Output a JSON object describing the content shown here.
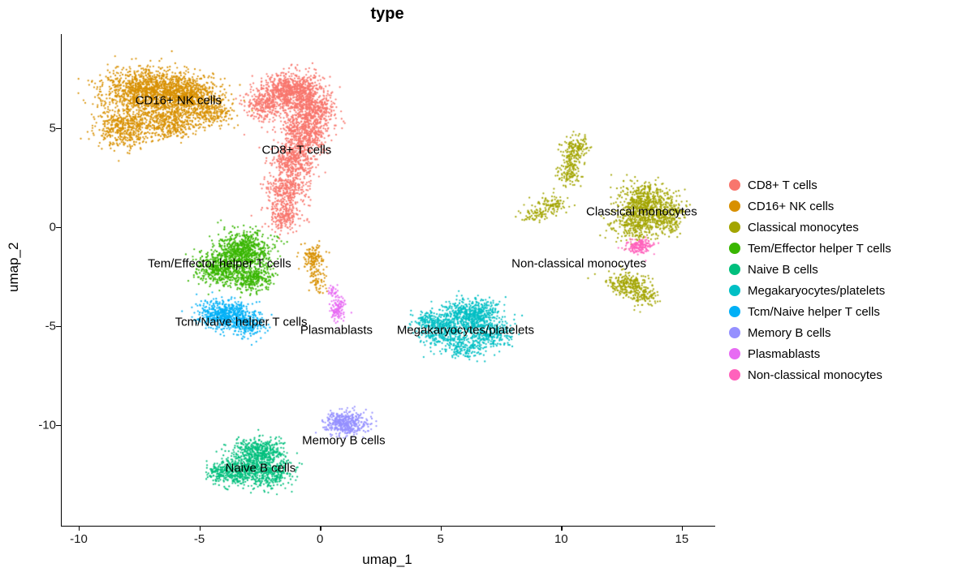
{
  "title": "type",
  "axes": {
    "x": {
      "label": "umap_1",
      "ticks": [
        -10,
        -5,
        0,
        5,
        10,
        15
      ]
    },
    "y": {
      "label": "umap_2",
      "ticks": [
        -10,
        -5,
        0,
        5
      ]
    }
  },
  "chart_data": {
    "type": "scatter",
    "title": "type",
    "xlabel": "umap_1",
    "ylabel": "umap_2",
    "xlim": [
      -10.74,
      16.35
    ],
    "ylim": [
      -15.1,
      9.75
    ],
    "x_ticks": [
      -10,
      -5,
      0,
      5,
      10,
      15
    ],
    "y_ticks": [
      -10,
      -5,
      0,
      5
    ],
    "grid": false,
    "legend_position": "right",
    "point_radius": 1.1,
    "series": [
      {
        "name": "CD8+ T cells",
        "color": "#F8766D",
        "label_pos": [
          -1.0,
          3.9
        ],
        "blobs": [
          [
            -1.2,
            6.9,
            0.6,
            0.45,
            800
          ],
          [
            -0.4,
            5.9,
            0.5,
            0.5,
            500
          ],
          [
            -2.4,
            6.2,
            0.4,
            0.4,
            250
          ],
          [
            -0.7,
            4.6,
            0.5,
            0.5,
            450
          ],
          [
            -1.1,
            3.3,
            0.45,
            0.5,
            400
          ],
          [
            -1.4,
            1.9,
            0.4,
            0.45,
            300
          ],
          [
            -1.5,
            0.6,
            0.35,
            0.4,
            220
          ]
        ]
      },
      {
        "name": "CD16+ NK cells",
        "color": "#D89000",
        "label_pos": [
          -5.9,
          6.4
        ],
        "blobs": [
          [
            -7.3,
            6.9,
            0.85,
            0.55,
            1100
          ],
          [
            -5.6,
            6.7,
            0.7,
            0.5,
            700
          ],
          [
            -8.2,
            5.0,
            0.55,
            0.5,
            450
          ],
          [
            -6.4,
            5.3,
            0.65,
            0.45,
            450
          ],
          [
            -4.6,
            5.9,
            0.5,
            0.45,
            300
          ],
          [
            -0.3,
            -1.6,
            0.22,
            0.35,
            140
          ],
          [
            -0.1,
            -2.8,
            0.18,
            0.3,
            60
          ]
        ]
      },
      {
        "name": "Classical monocytes",
        "color": "#A3A500",
        "label_pos": [
          13.3,
          0.75
        ],
        "blobs": [
          [
            13.5,
            1.2,
            0.6,
            0.5,
            600
          ],
          [
            13.0,
            0.1,
            0.5,
            0.4,
            280
          ],
          [
            14.3,
            0.4,
            0.4,
            0.4,
            220
          ],
          [
            10.6,
            4.0,
            0.3,
            0.3,
            130
          ],
          [
            10.4,
            3.4,
            0.15,
            0.3,
            60
          ],
          [
            10.3,
            2.7,
            0.25,
            0.3,
            100
          ],
          [
            9.6,
            1.1,
            0.35,
            0.25,
            100
          ],
          [
            8.9,
            0.6,
            0.3,
            0.2,
            60
          ],
          [
            12.7,
            -2.9,
            0.45,
            0.3,
            250
          ],
          [
            13.4,
            -3.5,
            0.3,
            0.25,
            110
          ]
        ]
      },
      {
        "name": "Tem/Effector helper T cells",
        "color": "#39B600",
        "label_pos": [
          -4.2,
          -1.85
        ],
        "blobs": [
          [
            -3.2,
            -1.2,
            0.55,
            0.45,
            700
          ],
          [
            -4.2,
            -2.1,
            0.45,
            0.4,
            450
          ],
          [
            -2.9,
            -2.5,
            0.45,
            0.35,
            350
          ]
        ]
      },
      {
        "name": "Naive B cells",
        "color": "#00BF7D",
        "label_pos": [
          -2.5,
          -12.2
        ],
        "blobs": [
          [
            -2.5,
            -11.4,
            0.5,
            0.35,
            450
          ],
          [
            -3.2,
            -12.3,
            0.5,
            0.4,
            450
          ],
          [
            -2.0,
            -12.5,
            0.4,
            0.35,
            250
          ],
          [
            -4.2,
            -12.4,
            0.3,
            0.3,
            130
          ]
        ]
      },
      {
        "name": "Megakaryocytes/platelets",
        "color": "#00BFC4",
        "label_pos": [
          6.0,
          -5.2
        ],
        "blobs": [
          [
            6.3,
            -4.4,
            0.6,
            0.4,
            550
          ],
          [
            5.2,
            -5.2,
            0.5,
            0.4,
            400
          ],
          [
            7.0,
            -5.4,
            0.45,
            0.35,
            300
          ],
          [
            4.4,
            -4.7,
            0.3,
            0.25,
            110
          ],
          [
            6.0,
            -6.2,
            0.4,
            0.25,
            140
          ]
        ]
      },
      {
        "name": "Tcm/Naive helper T cells",
        "color": "#00B0F6",
        "label_pos": [
          -3.3,
          -4.8
        ],
        "blobs": [
          [
            -4.0,
            -4.4,
            0.5,
            0.35,
            550
          ],
          [
            -3.0,
            -4.9,
            0.35,
            0.3,
            220
          ]
        ]
      },
      {
        "name": "Memory B cells",
        "color": "#9590FF",
        "label_pos": [
          0.95,
          -10.8
        ],
        "blobs": [
          [
            1.0,
            -9.9,
            0.45,
            0.3,
            420
          ]
        ]
      },
      {
        "name": "Plasmablasts",
        "color": "#E76BF3",
        "label_pos": [
          0.65,
          -5.2
        ],
        "blobs": [
          [
            0.7,
            -4.1,
            0.15,
            0.35,
            120
          ],
          [
            0.5,
            -3.3,
            0.12,
            0.15,
            25
          ]
        ]
      },
      {
        "name": "Non-classical monocytes",
        "color": "#FF62BC",
        "label_pos": [
          10.7,
          -1.85
        ],
        "blobs": [
          [
            13.2,
            -1.0,
            0.28,
            0.2,
            160
          ]
        ]
      }
    ]
  }
}
